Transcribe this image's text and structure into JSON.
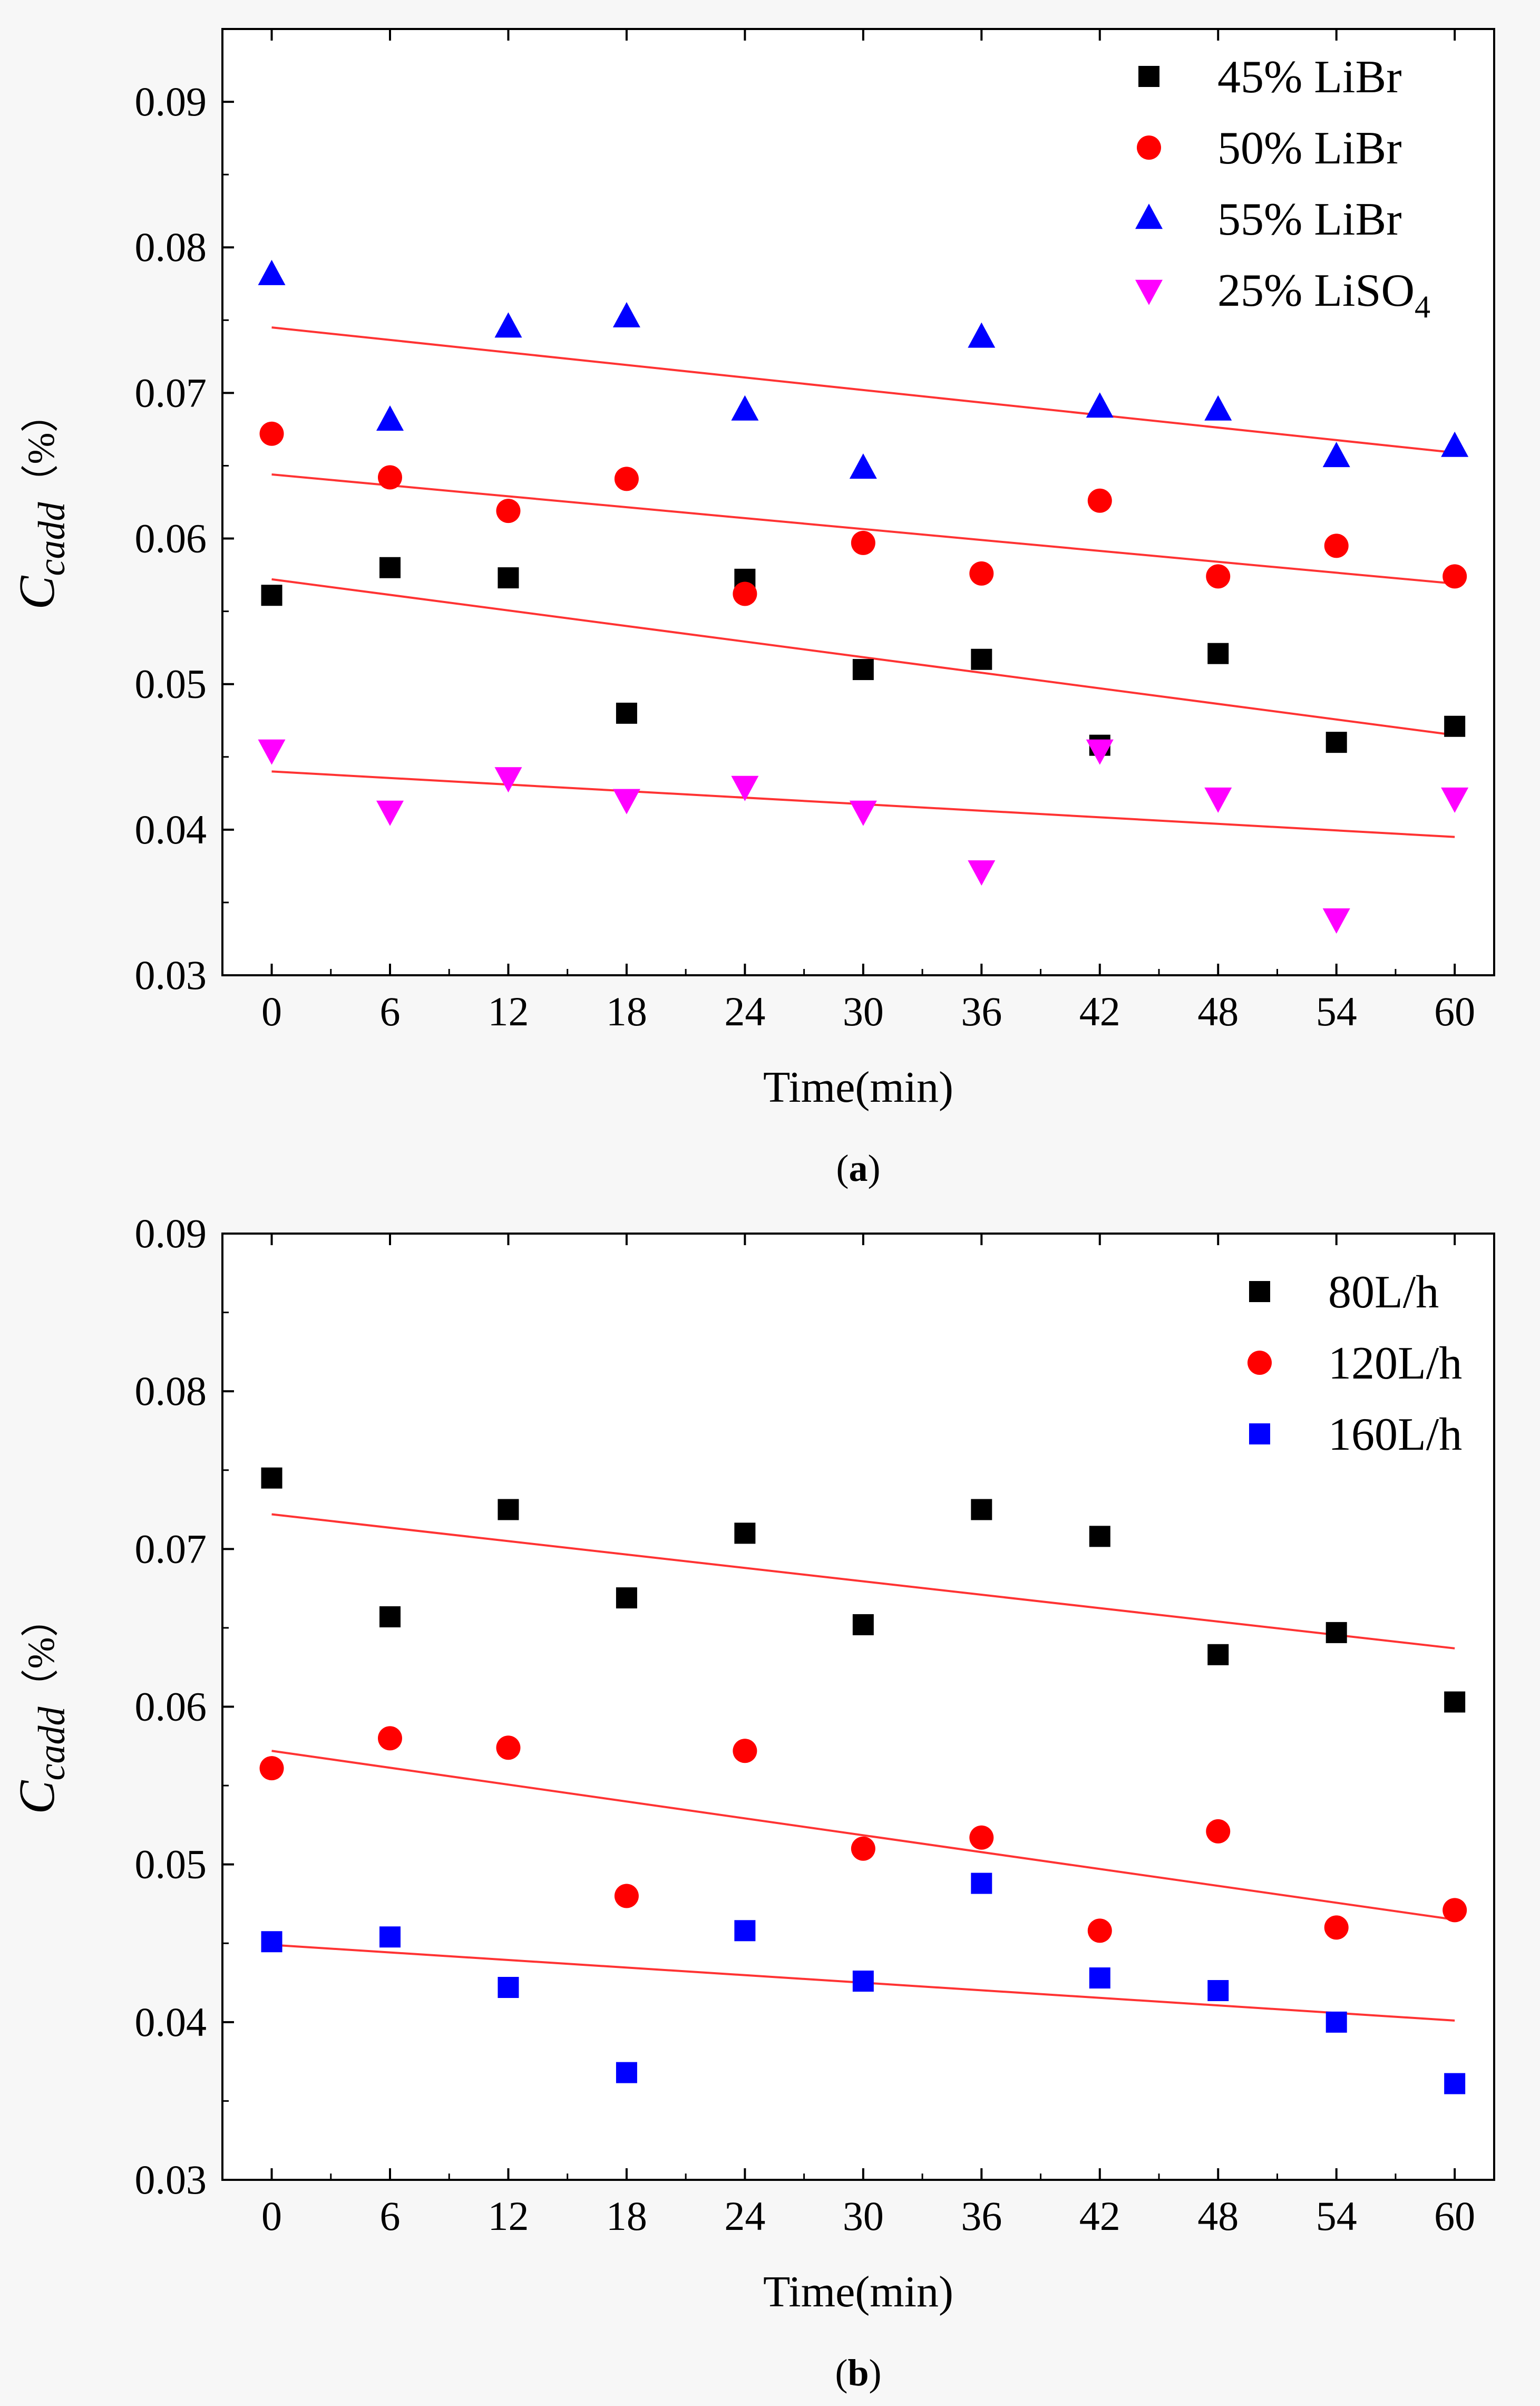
{
  "chart_data": [
    {
      "id": "a",
      "type": "scatter",
      "caption": "(a)",
      "xlabel": "Time(min)",
      "ylabel": {
        "main": "C",
        "sub": "cadd",
        "unit": "（%）"
      },
      "xlim": [
        -2.5,
        62
      ],
      "ylim": [
        0.03,
        0.095
      ],
      "xticks": [
        0,
        6,
        12,
        18,
        24,
        30,
        36,
        42,
        48,
        54,
        60
      ],
      "yticks": [
        "0.03",
        "0.04",
        "0.05",
        "0.06",
        "0.07",
        "0.08",
        "0.09"
      ],
      "legend_position": "top-right",
      "x": [
        0,
        6,
        12,
        18,
        24,
        30,
        36,
        42,
        48,
        54,
        60
      ],
      "series": [
        {
          "name": "45% LiBr",
          "marker": "square",
          "color": "#000000",
          "values": [
            0.0561,
            0.058,
            0.0573,
            0.048,
            0.0572,
            0.051,
            0.0517,
            0.0458,
            0.0521,
            0.046,
            0.0471
          ],
          "fit": [
            0.0572,
            0.0465
          ]
        },
        {
          "name": "50% LiBr",
          "marker": "circle",
          "color": "#ff0000",
          "values": [
            0.0672,
            0.0642,
            0.0619,
            0.0641,
            0.0562,
            0.0597,
            0.0576,
            0.0626,
            0.0574,
            0.0595,
            0.0574
          ],
          "fit": [
            0.0644,
            0.0569
          ]
        },
        {
          "name": "55% LiBr",
          "marker": "triangle-up",
          "color": "#0000ff",
          "values": [
            0.0781,
            0.0681,
            0.0745,
            0.0752,
            0.0688,
            0.0648,
            0.0738,
            0.069,
            0.0688,
            0.0656,
            0.0663
          ],
          "fit": [
            0.0745,
            0.0659
          ]
        },
        {
          "name": "25% LiSO",
          "name_sub": "4",
          "marker": "triangle-down",
          "color": "#ff00ff",
          "values": [
            0.0455,
            0.0413,
            0.0436,
            0.0421,
            0.043,
            0.0413,
            0.0372,
            0.0455,
            0.0422,
            0.0339,
            0.0422
          ],
          "fit": [
            0.044,
            0.0395
          ]
        }
      ],
      "fit_color": "#ff3333"
    },
    {
      "id": "b",
      "type": "scatter",
      "caption": "(b)",
      "xlabel": "Time(min)",
      "ylabel": {
        "main": "C",
        "sub": "cadd",
        "unit": "（%）"
      },
      "xlim": [
        -2.5,
        62
      ],
      "ylim": [
        0.03,
        0.09
      ],
      "xticks": [
        0,
        6,
        12,
        18,
        24,
        30,
        36,
        42,
        48,
        54,
        60
      ],
      "yticks": [
        "0.03",
        "0.04",
        "0.05",
        "0.06",
        "0.07",
        "0.08",
        "0.09"
      ],
      "legend_position": "top-right",
      "x": [
        0,
        6,
        12,
        18,
        24,
        30,
        36,
        42,
        48,
        54,
        60
      ],
      "series": [
        {
          "name": "80L/h",
          "marker": "square",
          "color": "#000000",
          "values": [
            0.0745,
            0.0657,
            0.0725,
            0.0669,
            0.071,
            0.0652,
            0.0725,
            0.0708,
            0.0633,
            0.0647,
            0.0603
          ],
          "fit": [
            0.0722,
            0.0637
          ]
        },
        {
          "name": "120L/h",
          "marker": "circle",
          "color": "#ff0000",
          "values": [
            0.0561,
            0.058,
            0.0574,
            0.048,
            0.0572,
            0.051,
            0.0517,
            0.0458,
            0.0521,
            0.046,
            0.0471
          ],
          "fit": [
            0.0572,
            0.0465
          ]
        },
        {
          "name": "160L/h",
          "marker": "square",
          "color": "#0000ff",
          "values": [
            0.0451,
            0.0454,
            0.0422,
            0.0368,
            0.0458,
            0.0426,
            0.0488,
            0.0428,
            0.042,
            0.04,
            0.0361
          ],
          "fit": [
            0.0449,
            0.0401
          ]
        }
      ],
      "fit_color": "#ff3333"
    }
  ]
}
